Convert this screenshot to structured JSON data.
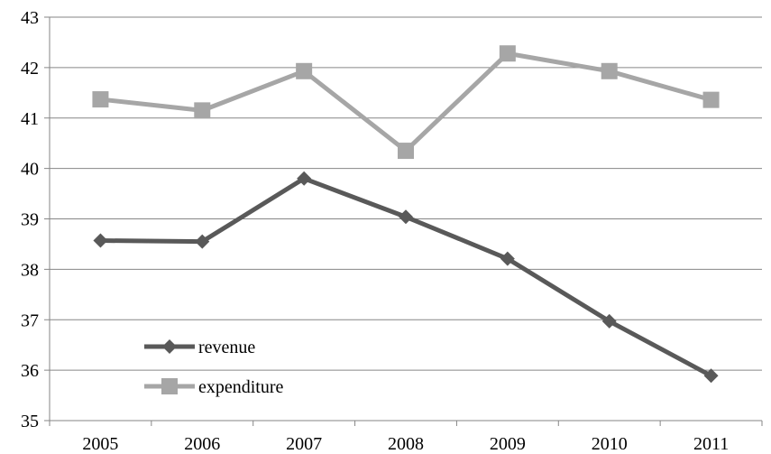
{
  "chart_data": {
    "type": "line",
    "title": "",
    "xlabel": "",
    "ylabel": "",
    "categories": [
      "2005",
      "2006",
      "2007",
      "2008",
      "2009",
      "2010",
      "2011"
    ],
    "ylim": [
      35,
      43
    ],
    "yticks": [
      "35",
      "36",
      "37",
      "38",
      "39",
      "40",
      "41",
      "42",
      "43"
    ],
    "grid": "horizontal",
    "legend_position": "bottom-left inside plot",
    "series": [
      {
        "name": "revenue",
        "marker": "diamond",
        "color": "#595959",
        "values": [
          38.57,
          38.55,
          39.8,
          39.04,
          38.21,
          36.97,
          35.89
        ]
      },
      {
        "name": "expenditure",
        "marker": "square",
        "color": "#a6a6a6",
        "values": [
          41.37,
          41.15,
          41.93,
          40.35,
          42.28,
          41.93,
          41.36
        ]
      }
    ]
  }
}
